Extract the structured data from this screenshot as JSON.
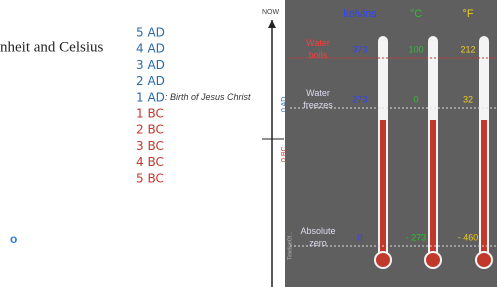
{
  "left_text": "nheit and Celsius",
  "bullet": "o",
  "timeline": {
    "now": "NOW",
    "ad_label": "0 AD",
    "bc_label": "0 BC",
    "caption": "TimelineOf...",
    "ad": [
      "5 AD",
      "4 AD",
      "3 AD",
      "2 AD",
      "1 AD"
    ],
    "birth_note": ": Birth of Jesus Christ",
    "bc": [
      "1 BC",
      "2 BC",
      "3 BC",
      "4 BC",
      "5 BC"
    ]
  },
  "thermometer": {
    "headers": [
      "kelvins",
      "°C",
      "°F"
    ],
    "rows": [
      {
        "label": "Water boils",
        "values": [
          "373",
          "100",
          "212"
        ]
      },
      {
        "label": "Water freezes",
        "values": [
          "273",
          "0",
          "32"
        ]
      },
      {
        "label": "Absolute zero",
        "values": [
          "0",
          "- 273",
          "- 460"
        ]
      }
    ]
  }
}
